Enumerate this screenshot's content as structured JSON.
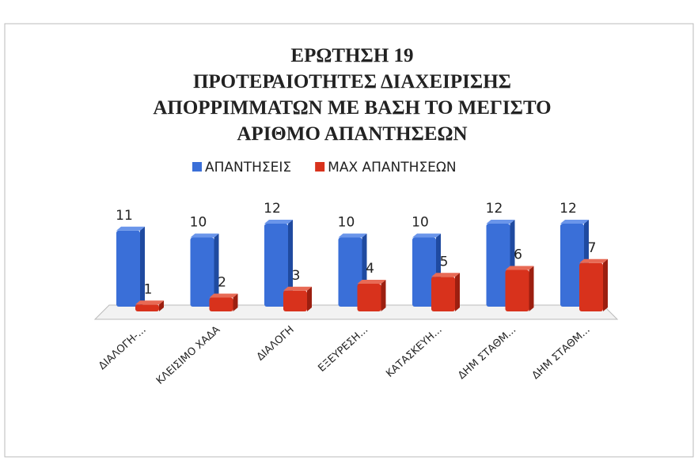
{
  "chart_data": {
    "type": "bar",
    "title": [
      "ΕΡΩΤΗΣΗ 19",
      "ΠΡΟΤΕΡΑΙΟΤΗΤΕΣ ΔΙΑΧΕΙΡΙΣΗΣ",
      "ΑΠΟΡΡΙΜΜΑΤΩΝ ΜΕ ΒΑΣΗ ΤΟ ΜΕΓΙΣΤΟ",
      "ΑΡΙΘΜΟ ΑΠΑΝΤΗΣΕΩΝ"
    ],
    "categories": [
      "ΔΙΑΛΟΓΗ-...",
      "ΚΛΕΙΣΙΜΟ ΧΑΔΑ",
      "ΔΙΑΛΟΓΗ",
      "ΕΞΕΥΡΕΣΗ...",
      "ΚΑΤΑΣΚΕΥΗ...",
      "ΔΗΜ ΣΤΑΘΜ...",
      "ΔΗΜ ΣΤΑΘΜ..."
    ],
    "series": [
      {
        "name": "ΑΠΑΝΤΗΣΕΙΣ",
        "color": "#3a6fd8",
        "values": [
          11,
          10,
          12,
          10,
          10,
          12,
          12
        ]
      },
      {
        "name": "ΜΑΧ ΑΠΑΝΤΗΣΕΩΝ",
        "color": "#d8321c",
        "values": [
          1,
          2,
          3,
          4,
          5,
          6,
          7
        ]
      }
    ],
    "legend": "top"
  }
}
